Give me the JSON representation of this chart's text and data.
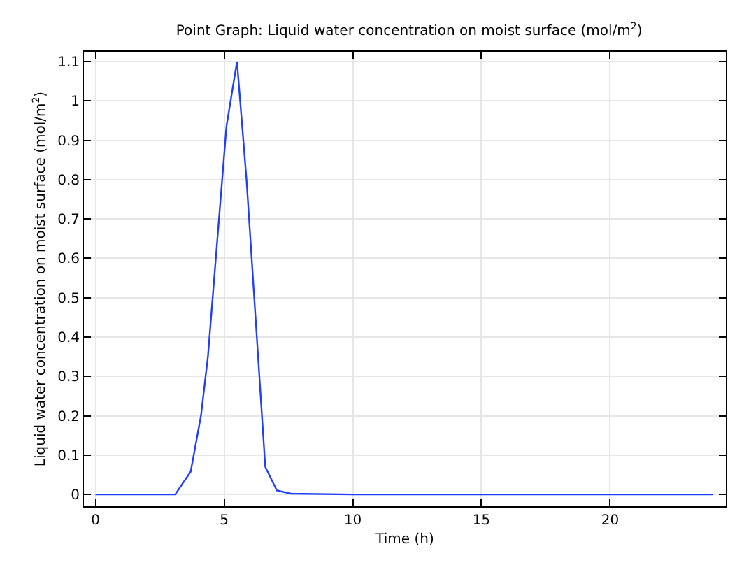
{
  "chart_data": {
    "type": "line",
    "title": "Point Graph: Liquid water concentration on moist surface (mol/m$^{2}$)",
    "xlabel": "Time (h)",
    "ylabel": "Liquid water concentration on moist surface (mol/m$^{2}$)",
    "x": [
      0,
      3.1,
      3.7,
      4.1,
      4.37,
      4.64,
      5.09,
      5.5,
      5.87,
      6.27,
      6.6,
      7.05,
      7.6,
      10,
      15,
      20,
      24
    ],
    "series": [
      {
        "color": "#1f3fff",
        "values": [
          0,
          0,
          0.058,
          0.2,
          0.35,
          0.57,
          0.935,
          1.1,
          0.8,
          0.4,
          0.07,
          0.01,
          0.002,
          0,
          0,
          0,
          0
        ]
      }
    ],
    "xlim": [
      -0.45,
      24.5
    ],
    "ylim": [
      -0.03,
      1.125
    ],
    "xticks": [
      0,
      5,
      10,
      15,
      20
    ],
    "yticks": [
      0,
      0.1,
      0.2,
      0.3,
      0.4,
      0.5,
      0.6,
      0.7,
      0.8,
      0.9,
      1,
      1.1
    ],
    "grid": true,
    "marker": "none",
    "line_style": "solid"
  }
}
